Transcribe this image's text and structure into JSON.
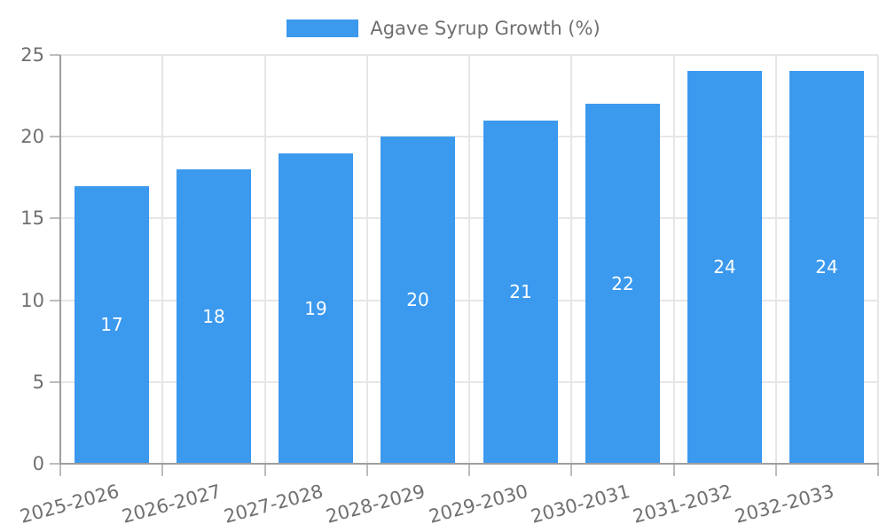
{
  "chart_data": {
    "type": "bar",
    "title": "",
    "legend_label": "Agave Syrup Growth (%)",
    "legend_position": "top",
    "categories": [
      "2025-2026",
      "2026-2027",
      "2027-2028",
      "2028-2029",
      "2029-2030",
      "2030-2031",
      "2031-2032",
      "2032-2033"
    ],
    "values": [
      17,
      18,
      19,
      20,
      21,
      22,
      24,
      24
    ],
    "value_labels_inside_bars": true,
    "xlabel": "",
    "ylabel": "",
    "ylim": [
      0,
      25
    ],
    "y_ticks": [
      0,
      5,
      10,
      15,
      20,
      25
    ],
    "grid": "horizontal gridlines at y ticks, vertical gridlines at category boundaries",
    "x_tick_label_rotation_deg": -15,
    "colors": {
      "bar": "#3B99EE",
      "value_label": "#FFFFFF",
      "axis_line": "#9E9E9E",
      "grid_line": "#E6E6E6",
      "tick_mark": "#BDBDBD",
      "text": "#6F6F6F",
      "background": "#FFFFFF"
    }
  }
}
